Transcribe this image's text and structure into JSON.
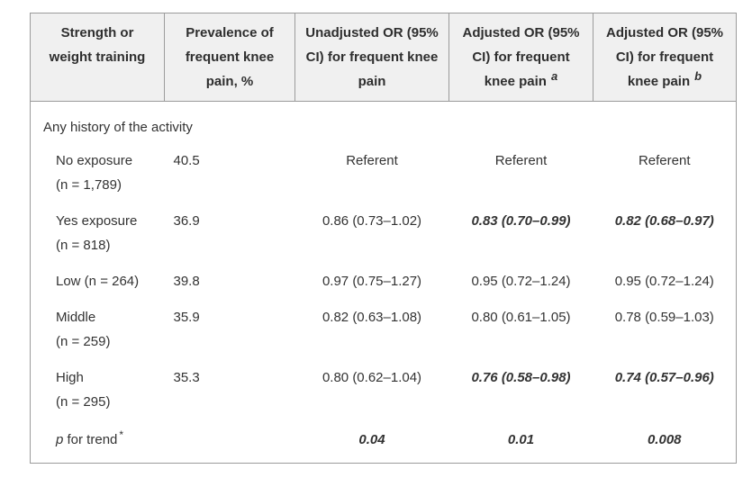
{
  "table": {
    "columns": [
      {
        "label": "Strength or weight training",
        "superscript": ""
      },
      {
        "label": "Prevalence of frequent knee pain, %",
        "superscript": ""
      },
      {
        "label": "Unadjusted OR (95% CI) for frequent knee pain",
        "superscript": ""
      },
      {
        "label": "Adjusted OR (95% CI) for frequent knee pain",
        "superscript": "a"
      },
      {
        "label": "Adjusted OR (95% CI) for frequent knee pain",
        "superscript": "b"
      }
    ],
    "section_header": "Any history of the activity",
    "rows": [
      {
        "label": "No exposure",
        "sublabel": "(n = 1,789)",
        "prevalence": "40.5",
        "unadjusted": "Referent",
        "adjusted_a": "Referent",
        "adjusted_b": "Referent",
        "emphasis": {
          "unadjusted": false,
          "adjusted_a": false,
          "adjusted_b": false
        }
      },
      {
        "label": "Yes exposure",
        "sublabel": "(n = 818)",
        "prevalence": "36.9",
        "unadjusted": "0.86 (0.73–1.02)",
        "adjusted_a": "0.83 (0.70–0.99)",
        "adjusted_b": "0.82 (0.68–0.97)",
        "emphasis": {
          "unadjusted": false,
          "adjusted_a": true,
          "adjusted_b": true
        }
      },
      {
        "label": "Low (n = 264)",
        "sublabel": "",
        "prevalence": "39.8",
        "unadjusted": "0.97 (0.75–1.27)",
        "adjusted_a": "0.95 (0.72–1.24)",
        "adjusted_b": "0.95 (0.72–1.24)",
        "emphasis": {
          "unadjusted": false,
          "adjusted_a": false,
          "adjusted_b": false
        }
      },
      {
        "label": "Middle",
        "sublabel": "(n = 259)",
        "prevalence": "35.9",
        "unadjusted": "0.82 (0.63–1.08)",
        "adjusted_a": "0.80 (0.61–1.05)",
        "adjusted_b": "0.78 (0.59–1.03)",
        "emphasis": {
          "unadjusted": false,
          "adjusted_a": false,
          "adjusted_b": false
        }
      },
      {
        "label": "High",
        "sublabel": "(n = 295)",
        "prevalence": "35.3",
        "unadjusted": "0.80 (0.62–1.04)",
        "adjusted_a": "0.76 (0.58–0.98)",
        "adjusted_b": "0.74 (0.57–0.96)",
        "emphasis": {
          "unadjusted": false,
          "adjusted_a": true,
          "adjusted_b": true
        }
      }
    ],
    "trend_row": {
      "label_italic": "p",
      "label_rest": " for trend",
      "superscript": "*",
      "unadjusted": "0.04",
      "adjusted_a": "0.01",
      "adjusted_b": "0.008",
      "emphasis": {
        "unadjusted": true,
        "adjusted_a": true,
        "adjusted_b": true
      }
    },
    "colors": {
      "header_background": "#f0f0f0",
      "border": "#9b9b9b",
      "text": "#333333"
    }
  }
}
